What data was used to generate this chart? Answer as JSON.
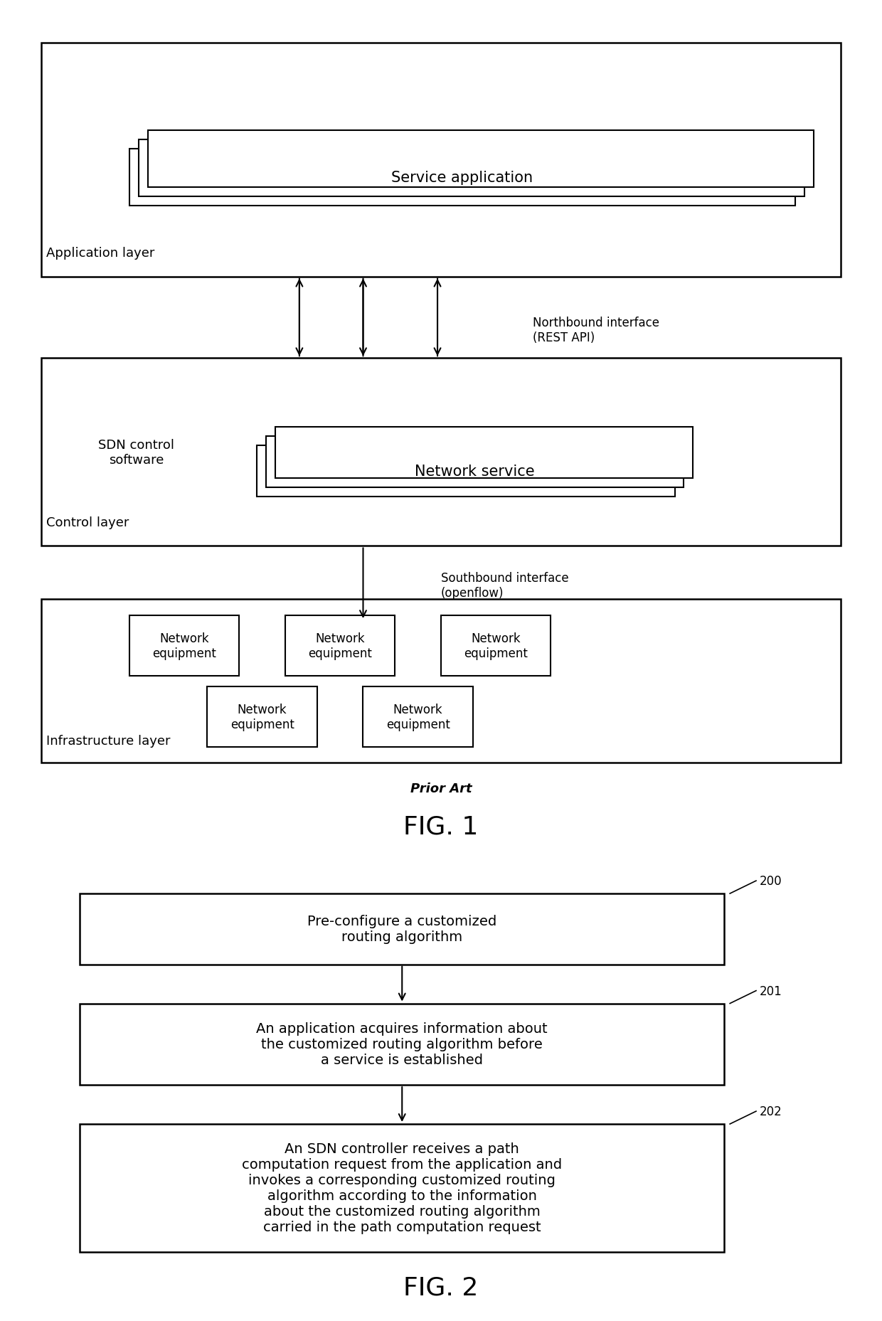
{
  "bg_color": "#ffffff",
  "fig1": {
    "title": "Prior Art",
    "fig_label": "FIG. 1",
    "app_layer_label": "Application layer",
    "ctrl_layer_label": "Control layer",
    "infra_layer_label": "Infrastructure layer",
    "service_app_text": "Service application",
    "sdn_ctrl_text": "SDN control\nsoftware",
    "network_service_text": "Network service",
    "northbound_text": "Northbound interface\n(REST API)",
    "southbound_text": "Southbound interface\n(openflow)",
    "network_eq_text": "Network\nequipment"
  },
  "fig2": {
    "fig_label": "FIG. 2",
    "step200_label": "200",
    "step201_label": "201",
    "step202_label": "202",
    "step200_text": "Pre-configure a customized\nrouting algorithm",
    "step201_text": "An application acquires information about\nthe customized routing algorithm before\na service is established",
    "step202_text": "An SDN controller receives a path\ncomputation request from the application and\ninvokes a corresponding customized routing\nalgorithm according to the information\nabout the customized routing algorithm\ncarried in the path computation request"
  }
}
